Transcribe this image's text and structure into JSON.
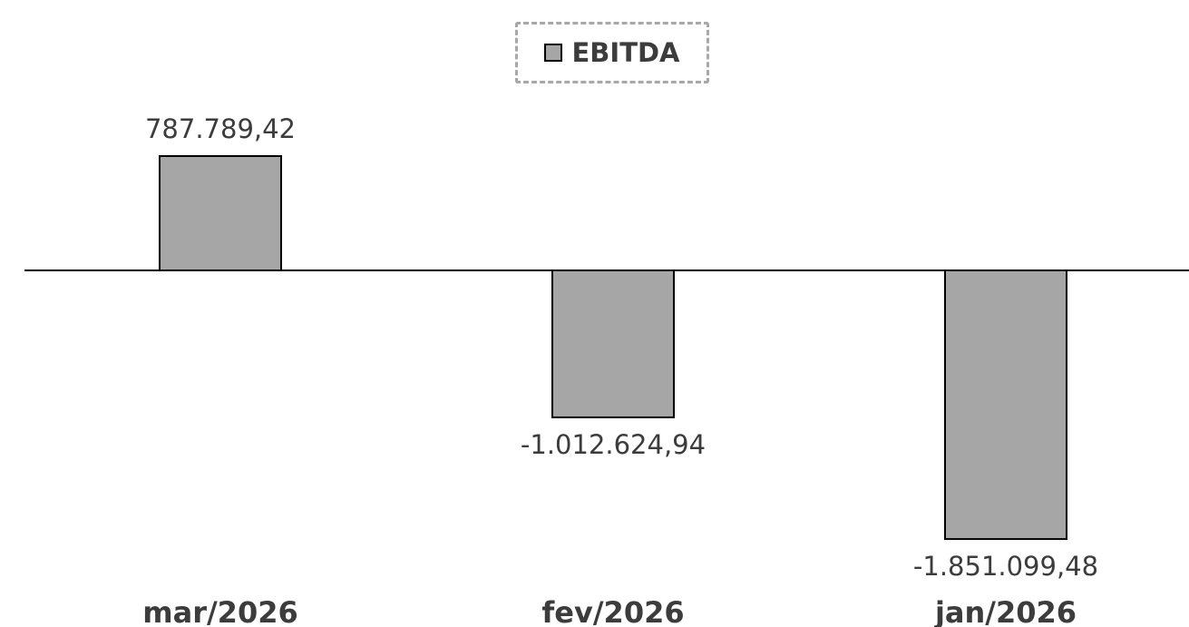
{
  "chart_data": {
    "type": "bar",
    "categories": [
      "mar/2026",
      "fev/2026",
      "jan/2026"
    ],
    "series": [
      {
        "name": "EBITDA",
        "values": [
          787789.42,
          -1012624.94,
          -1851099.48
        ],
        "labels": [
          "787.789,42",
          "-1.012.624,94",
          "-1.851.099,48"
        ]
      }
    ],
    "ylim": [
      -2350000,
      1850000
    ],
    "grid": false,
    "legend_position": "top-center",
    "bar_color": "#a6a6a6",
    "bar_border_color": "#000000",
    "baseline_color": "#000000",
    "label_color": "#3c3c3c"
  }
}
